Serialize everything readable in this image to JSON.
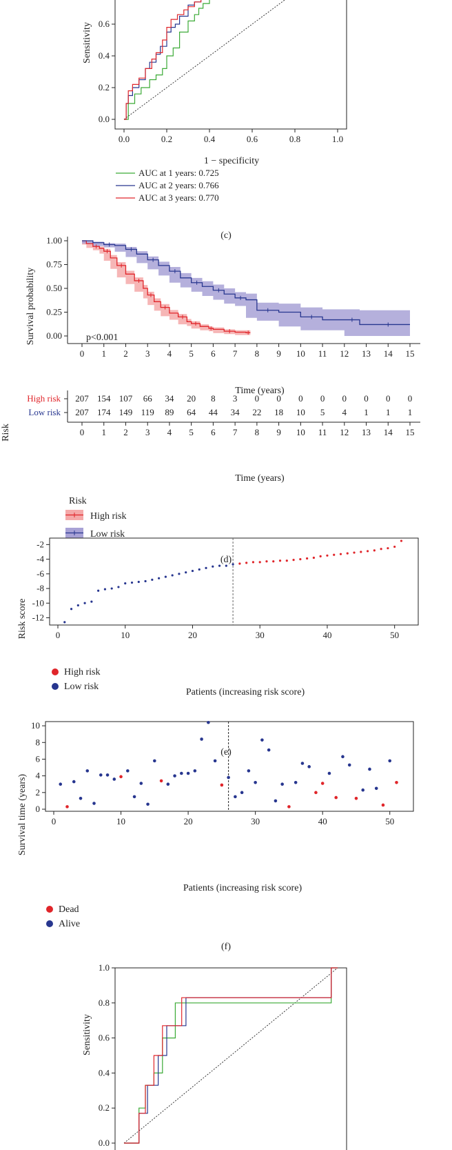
{
  "chart_data": [
    {
      "type": "line",
      "panel": "c",
      "caption": "(c)",
      "xlabel": "1 − specificity",
      "ylabel": "Sensitivity",
      "xlim": [
        0,
        1
      ],
      "ylim": [
        0,
        1
      ],
      "xticks": [
        "0.0",
        "0.2",
        "0.4",
        "0.6",
        "0.8",
        "1.0"
      ],
      "yticks": [
        "0.0",
        "0.2",
        "0.4",
        "0.6"
      ],
      "series": [
        {
          "name": "AUC at 1 years: 0.725",
          "color": "#3aaa35",
          "x": [
            0,
            0.02,
            0.02,
            0.05,
            0.08,
            0.1,
            0.12,
            0.15,
            0.18,
            0.2,
            0.23,
            0.26,
            0.3,
            0.33,
            0.35,
            0.37,
            0.4
          ],
          "y": [
            0,
            0.05,
            0.1,
            0.16,
            0.2,
            0.2,
            0.25,
            0.28,
            0.32,
            0.4,
            0.45,
            0.55,
            0.62,
            0.66,
            0.7,
            0.73,
            0.76
          ]
        },
        {
          "name": "AUC at 2 years: 0.766",
          "color": "#27368f",
          "x": [
            0,
            0.01,
            0.02,
            0.04,
            0.07,
            0.1,
            0.12,
            0.15,
            0.17,
            0.2,
            0.22,
            0.24,
            0.26,
            0.3,
            0.33,
            0.36,
            0.4
          ],
          "y": [
            0,
            0.1,
            0.15,
            0.2,
            0.25,
            0.32,
            0.36,
            0.41,
            0.46,
            0.55,
            0.58,
            0.6,
            0.65,
            0.72,
            0.74,
            0.76,
            0.76
          ]
        },
        {
          "name": "AUC at 3 years: 0.770",
          "color": "#e0252a",
          "x": [
            0,
            0.01,
            0.02,
            0.04,
            0.07,
            0.1,
            0.13,
            0.15,
            0.18,
            0.2,
            0.22,
            0.25,
            0.28,
            0.3,
            0.33,
            0.36
          ],
          "y": [
            0,
            0.1,
            0.18,
            0.22,
            0.26,
            0.32,
            0.38,
            0.42,
            0.5,
            0.58,
            0.63,
            0.66,
            0.69,
            0.71,
            0.74,
            0.76
          ]
        }
      ],
      "legend": [
        "AUC at 1 years: 0.725",
        "AUC at 2 years: 0.766",
        "AUC at 3 years: 0.770"
      ]
    },
    {
      "type": "line",
      "panel": "d",
      "caption": "(d)",
      "xlabel": "Time (years)",
      "ylabel": "Survival probability",
      "xlim": [
        0,
        15
      ],
      "ylim": [
        0,
        1
      ],
      "xticks": [
        "0",
        "1",
        "2",
        "3",
        "4",
        "5",
        "6",
        "7",
        "8",
        "9",
        "10",
        "11",
        "12",
        "13",
        "14",
        "15"
      ],
      "yticks": [
        "0.00",
        "0.25",
        "0.50",
        "0.75",
        "1.00"
      ],
      "annotation": "p<0.001",
      "series": [
        {
          "name": "High risk",
          "color": "#e0252a",
          "band": "#f4a9a9",
          "x": [
            0,
            0.2,
            0.5,
            0.8,
            1,
            1.3,
            1.6,
            2,
            2.4,
            2.8,
            3,
            3.3,
            3.6,
            4,
            4.4,
            4.8,
            5,
            5.4,
            5.8,
            6,
            6.5,
            7,
            7.5,
            7.7
          ],
          "y": [
            1,
            0.97,
            0.94,
            0.92,
            0.89,
            0.82,
            0.74,
            0.65,
            0.58,
            0.5,
            0.43,
            0.36,
            0.3,
            0.24,
            0.2,
            0.15,
            0.13,
            0.1,
            0.08,
            0.07,
            0.05,
            0.04,
            0.035,
            0.035
          ],
          "band_half": [
            0,
            0.01,
            0.015,
            0.02,
            0.025,
            0.03,
            0.035,
            0.035,
            0.035,
            0.035,
            0.035,
            0.035,
            0.035,
            0.033,
            0.03,
            0.028,
            0.025,
            0.022,
            0.02,
            0.02,
            0.02,
            0.02,
            0.025,
            0.025
          ]
        },
        {
          "name": "Low risk",
          "color": "#27368f",
          "band": "#a8a2d6",
          "x": [
            0,
            0.5,
            1,
            1.5,
            2,
            2.5,
            3,
            3.5,
            4,
            4.5,
            5,
            5.5,
            6,
            6.5,
            7,
            7.5,
            8,
            9,
            10,
            11,
            12,
            12.7,
            13,
            15
          ],
          "y": [
            1,
            0.98,
            0.96,
            0.95,
            0.91,
            0.86,
            0.8,
            0.74,
            0.68,
            0.61,
            0.56,
            0.52,
            0.48,
            0.44,
            0.4,
            0.38,
            0.27,
            0.25,
            0.2,
            0.17,
            0.17,
            0.12,
            0.12,
            0.12
          ],
          "band_half": [
            0,
            0.01,
            0.015,
            0.02,
            0.025,
            0.03,
            0.035,
            0.04,
            0.045,
            0.05,
            0.05,
            0.055,
            0.06,
            0.06,
            0.06,
            0.065,
            0.08,
            0.09,
            0.1,
            0.11,
            0.11,
            0.15,
            0.15,
            0.15
          ]
        }
      ],
      "legend_title": "Risk",
      "legend": [
        "High risk",
        "Low risk"
      ]
    },
    {
      "type": "table",
      "panel": "d-risk-table",
      "row_axis_label": "Risk",
      "xlabel": "Time (years)",
      "xticks": [
        "0",
        "1",
        "2",
        "3",
        "4",
        "5",
        "6",
        "7",
        "8",
        "9",
        "10",
        "11",
        "12",
        "13",
        "14",
        "15"
      ],
      "rows": [
        {
          "label": "High risk",
          "color": "#e0252a",
          "values": [
            "207",
            "154",
            "107",
            "66",
            "34",
            "20",
            "8",
            "3",
            "0",
            "0",
            "0",
            "0",
            "0",
            "0",
            "0",
            "0"
          ]
        },
        {
          "label": "Low risk",
          "color": "#27368f",
          "values": [
            "207",
            "174",
            "149",
            "119",
            "89",
            "64",
            "44",
            "34",
            "22",
            "18",
            "10",
            "5",
            "4",
            "1",
            "1",
            "1"
          ]
        }
      ]
    },
    {
      "type": "scatter",
      "panel": "e",
      "caption": "(e)",
      "xlabel": "Patients (increasing risk score)",
      "ylabel": "Risk score",
      "xlim": [
        0,
        53
      ],
      "ylim": [
        -12.8,
        -1.4
      ],
      "xticks": [
        "0",
        "10",
        "20",
        "30",
        "40",
        "50"
      ],
      "yticks": [
        "-12",
        "-10",
        "-8",
        "-6",
        "-4",
        "-2"
      ],
      "cutoff": 26,
      "scores": [
        -12.6,
        -10.8,
        -10.3,
        -10.0,
        -9.8,
        -8.3,
        -8.1,
        -8.0,
        -7.8,
        -7.3,
        -7.2,
        -7.1,
        -7.0,
        -6.8,
        -6.6,
        -6.4,
        -6.2,
        -6.0,
        -5.8,
        -5.6,
        -5.4,
        -5.2,
        -5.0,
        -4.9,
        -4.9,
        -4.7,
        -4.6,
        -4.5,
        -4.4,
        -4.4,
        -4.3,
        -4.3,
        -4.2,
        -4.2,
        -4.1,
        -4.0,
        -3.9,
        -3.8,
        -3.6,
        -3.5,
        -3.4,
        -3.3,
        -3.2,
        -3.1,
        -3.0,
        -2.9,
        -2.8,
        -2.6,
        -2.5,
        -2.3,
        -1.5
      ],
      "legend": [
        "High risk",
        "Low risk"
      ],
      "colors": {
        "high": "#e0252a",
        "low": "#27368f"
      }
    },
    {
      "type": "scatter",
      "panel": "f",
      "caption": "(f)",
      "xlabel": "Patients (increasing risk score)",
      "ylabel": "Survival time (years)",
      "xlim": [
        0,
        53
      ],
      "ylim": [
        0,
        11
      ],
      "xticks": [
        "0",
        "10",
        "20",
        "30",
        "40",
        "50"
      ],
      "yticks": [
        "0",
        "2",
        "4",
        "6",
        "8",
        "10"
      ],
      "cutoff": 26,
      "points": [
        [
          1,
          3.0,
          "alive"
        ],
        [
          2,
          0.3,
          "dead"
        ],
        [
          3,
          3.3,
          "alive"
        ],
        [
          4,
          1.3,
          "alive"
        ],
        [
          5,
          4.6,
          "alive"
        ],
        [
          6,
          0.7,
          "alive"
        ],
        [
          7,
          4.1,
          "alive"
        ],
        [
          8,
          4.1,
          "alive"
        ],
        [
          9,
          3.6,
          "alive"
        ],
        [
          10,
          3.9,
          "dead"
        ],
        [
          11,
          4.6,
          "alive"
        ],
        [
          12,
          1.5,
          "alive"
        ],
        [
          13,
          3.1,
          "alive"
        ],
        [
          14,
          0.6,
          "alive"
        ],
        [
          15,
          5.8,
          "alive"
        ],
        [
          16,
          3.4,
          "dead"
        ],
        [
          17,
          3.0,
          "alive"
        ],
        [
          18,
          4.0,
          "alive"
        ],
        [
          19,
          4.3,
          "alive"
        ],
        [
          20,
          4.3,
          "alive"
        ],
        [
          21,
          4.6,
          "alive"
        ],
        [
          22,
          8.4,
          "alive"
        ],
        [
          23,
          10.4,
          "alive"
        ],
        [
          24,
          5.8,
          "alive"
        ],
        [
          25,
          2.9,
          "dead"
        ],
        [
          26,
          3.8,
          "alive"
        ],
        [
          27,
          1.5,
          "alive"
        ],
        [
          28,
          2.0,
          "alive"
        ],
        [
          29,
          4.6,
          "alive"
        ],
        [
          30,
          3.2,
          "alive"
        ],
        [
          31,
          8.3,
          "alive"
        ],
        [
          32,
          7.1,
          "alive"
        ],
        [
          33,
          1.0,
          "alive"
        ],
        [
          34,
          3.0,
          "alive"
        ],
        [
          35,
          0.3,
          "dead"
        ],
        [
          36,
          3.2,
          "alive"
        ],
        [
          37,
          5.5,
          "alive"
        ],
        [
          38,
          5.1,
          "alive"
        ],
        [
          39,
          2.0,
          "dead"
        ],
        [
          40,
          3.1,
          "dead"
        ],
        [
          41,
          4.3,
          "alive"
        ],
        [
          42,
          1.4,
          "dead"
        ],
        [
          43,
          6.3,
          "alive"
        ],
        [
          44,
          5.3,
          "alive"
        ],
        [
          45,
          1.3,
          "dead"
        ],
        [
          46,
          2.3,
          "alive"
        ],
        [
          47,
          4.8,
          "alive"
        ],
        [
          48,
          2.5,
          "alive"
        ],
        [
          49,
          0.5,
          "dead"
        ],
        [
          50,
          5.8,
          "alive"
        ],
        [
          51,
          3.2,
          "dead"
        ]
      ],
      "legend": [
        "Dead",
        "Alive"
      ],
      "colors": {
        "dead": "#e0252a",
        "alive": "#27368f"
      }
    },
    {
      "type": "line",
      "panel": "g",
      "ylabel": "Sensitivity",
      "xlim": [
        0,
        1
      ],
      "ylim": [
        0,
        1
      ],
      "yticks": [
        "0.0",
        "0.2",
        "0.4",
        "0.6",
        "0.8",
        "1.0"
      ],
      "series": [
        {
          "name": "green",
          "color": "#3aaa35",
          "x": [
            0,
            0.07,
            0.07,
            0.1,
            0.1,
            0.14,
            0.14,
            0.18,
            0.18,
            0.24,
            0.24,
            0.3,
            0.3,
            0.97,
            0.97,
            1
          ],
          "y": [
            0,
            0,
            0.2,
            0.2,
            0.33,
            0.33,
            0.4,
            0.4,
            0.6,
            0.6,
            0.8,
            0.8,
            0.8,
            0.8,
            1,
            1
          ]
        },
        {
          "name": "navy",
          "color": "#27368f",
          "x": [
            0,
            0.07,
            0.07,
            0.11,
            0.11,
            0.16,
            0.16,
            0.2,
            0.2,
            0.25,
            0.25,
            0.29,
            0.29,
            0.97,
            0.97,
            1
          ],
          "y": [
            0,
            0,
            0.17,
            0.17,
            0.33,
            0.33,
            0.5,
            0.5,
            0.67,
            0.67,
            0.67,
            0.67,
            0.83,
            0.83,
            1,
            1
          ]
        },
        {
          "name": "red",
          "color": "#e0252a",
          "x": [
            0,
            0.07,
            0.07,
            0.1,
            0.1,
            0.14,
            0.14,
            0.18,
            0.18,
            0.22,
            0.22,
            0.27,
            0.27,
            0.97,
            0.97,
            1
          ],
          "y": [
            0,
            0,
            0.17,
            0.17,
            0.33,
            0.33,
            0.5,
            0.5,
            0.67,
            0.67,
            0.67,
            0.67,
            0.83,
            0.83,
            1,
            1
          ]
        }
      ]
    }
  ]
}
